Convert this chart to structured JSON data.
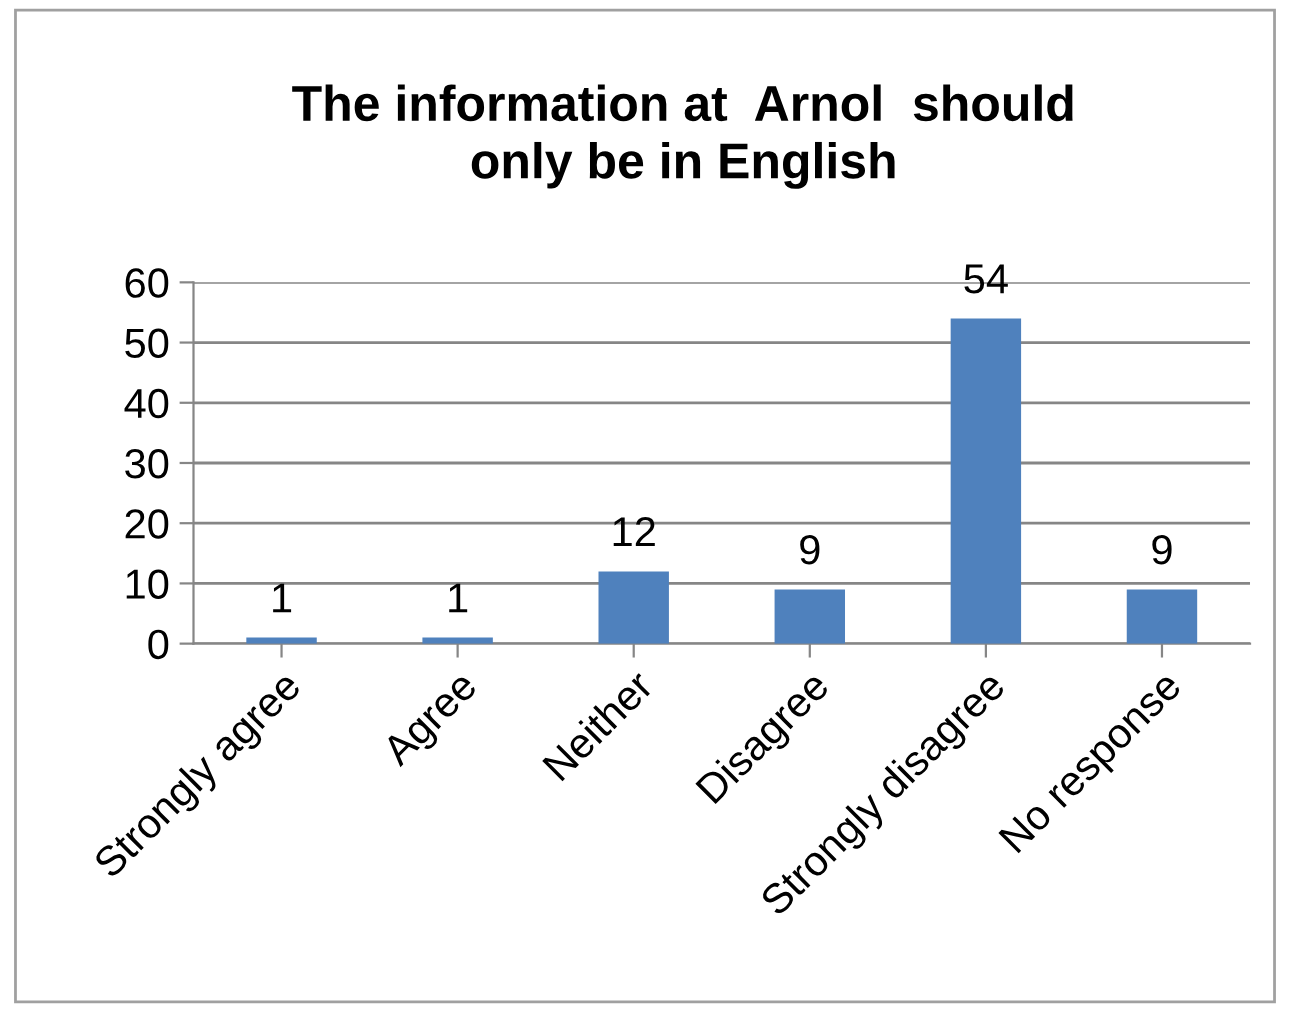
{
  "chart_data": {
    "type": "bar",
    "title": "The information at  Arnol  should\nonly be in English",
    "categories": [
      "Strongly agree",
      "Agree",
      "Neither",
      "Disagree",
      "Strongly disagree",
      "No response"
    ],
    "values": [
      1,
      1,
      12,
      9,
      54,
      9
    ],
    "color": "#4f81bd",
    "ylim": [
      0,
      60
    ],
    "yticks": [
      0,
      10,
      20,
      30,
      40,
      50,
      60
    ],
    "grid": "y",
    "data_labels": true,
    "legend": false
  }
}
